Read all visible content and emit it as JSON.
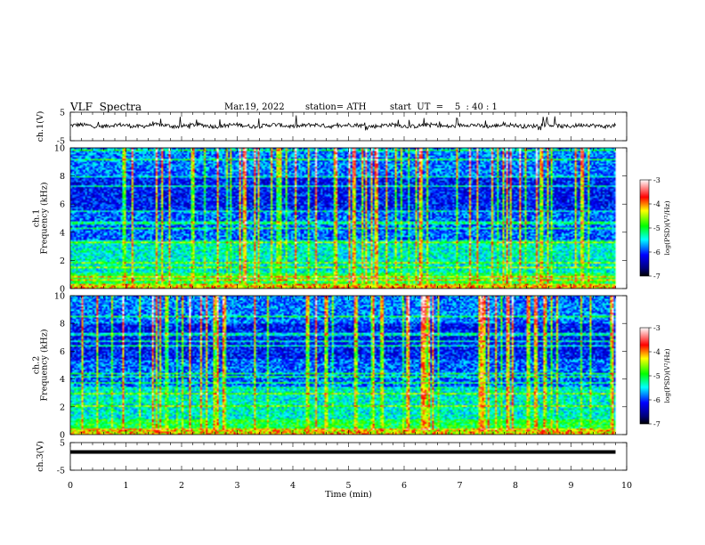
{
  "header": {
    "title": "VLF  Spectra",
    "date": "Mar.19, 2022",
    "station": "station= ATH",
    "start": "start  UT  =    5  : 40 : 1"
  },
  "chart_data": [
    {
      "type": "line",
      "name": "ch1-waveform",
      "ylabel": "ch.1(V)",
      "ylim": [
        -5,
        5
      ],
      "yticks": [
        5,
        -5
      ],
      "xlim": [
        0,
        10
      ],
      "y_baseline": 0.3
    },
    {
      "type": "heatmap",
      "name": "ch1-spectrogram",
      "ylabel": "ch.1\nFrequency  (kHz)",
      "ylim": [
        0,
        10
      ],
      "yticks": [
        0,
        2,
        4,
        6,
        8,
        10
      ],
      "xlim": [
        0,
        10
      ],
      "x_end_data": 9.8,
      "colorbar": {
        "label": "log(PSD)(V²/Hz)",
        "range": [
          -7,
          -3
        ],
        "ticks": [
          -3,
          -4,
          -5,
          -6,
          -7
        ]
      }
    },
    {
      "type": "heatmap",
      "name": "ch2-spectrogram",
      "ylabel": "ch.2\nFrequency  (kHz)",
      "ylim": [
        0,
        10
      ],
      "yticks": [
        0,
        2,
        4,
        6,
        8,
        10
      ],
      "xlim": [
        0,
        10
      ],
      "x_end_data": 9.8,
      "colorbar": {
        "label": "log(PSD)(V²/Hz)",
        "range": [
          -7,
          -3
        ],
        "ticks": [
          -3,
          -4,
          -5,
          -6,
          -7
        ]
      }
    },
    {
      "type": "line",
      "name": "ch3-waveform",
      "ylabel": "ch.3(V)",
      "ylim": [
        -5,
        5
      ],
      "yticks": [
        5,
        -5
      ],
      "xlim": [
        0,
        10
      ],
      "y_baseline": 1.6
    }
  ],
  "x_axis": {
    "label": "Time  (min)",
    "ticks": [
      0,
      1,
      2,
      3,
      4,
      5,
      6,
      7,
      8,
      9,
      10
    ]
  }
}
